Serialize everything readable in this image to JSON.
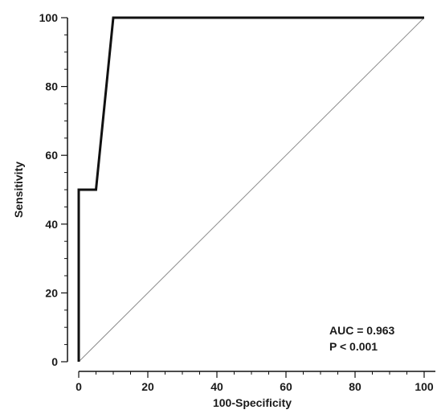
{
  "chart_data": {
    "type": "line",
    "title": "",
    "xlabel": "100-Specificity",
    "ylabel": "Sensitivity",
    "xlim": [
      0,
      100
    ],
    "ylim": [
      0,
      100
    ],
    "x_ticks": [
      0,
      20,
      40,
      60,
      80,
      100
    ],
    "y_ticks": [
      0,
      20,
      40,
      60,
      80,
      100
    ],
    "x_tick_labels": [
      "0",
      "20",
      "40",
      "60",
      "80",
      "100"
    ],
    "y_tick_labels": [
      "0",
      "20",
      "40",
      "60",
      "80",
      "100"
    ],
    "grid": false,
    "series": [
      {
        "x": [
          0,
          0,
          5,
          10,
          100
        ],
        "y": [
          0,
          50,
          50,
          100,
          100
        ],
        "color": "#111111"
      },
      {
        "x": [
          0,
          100
        ],
        "y": [
          0,
          100
        ],
        "color": "#8c8c8c"
      }
    ],
    "annotations": [
      "AUC = 0.963",
      "P < 0.001"
    ]
  }
}
